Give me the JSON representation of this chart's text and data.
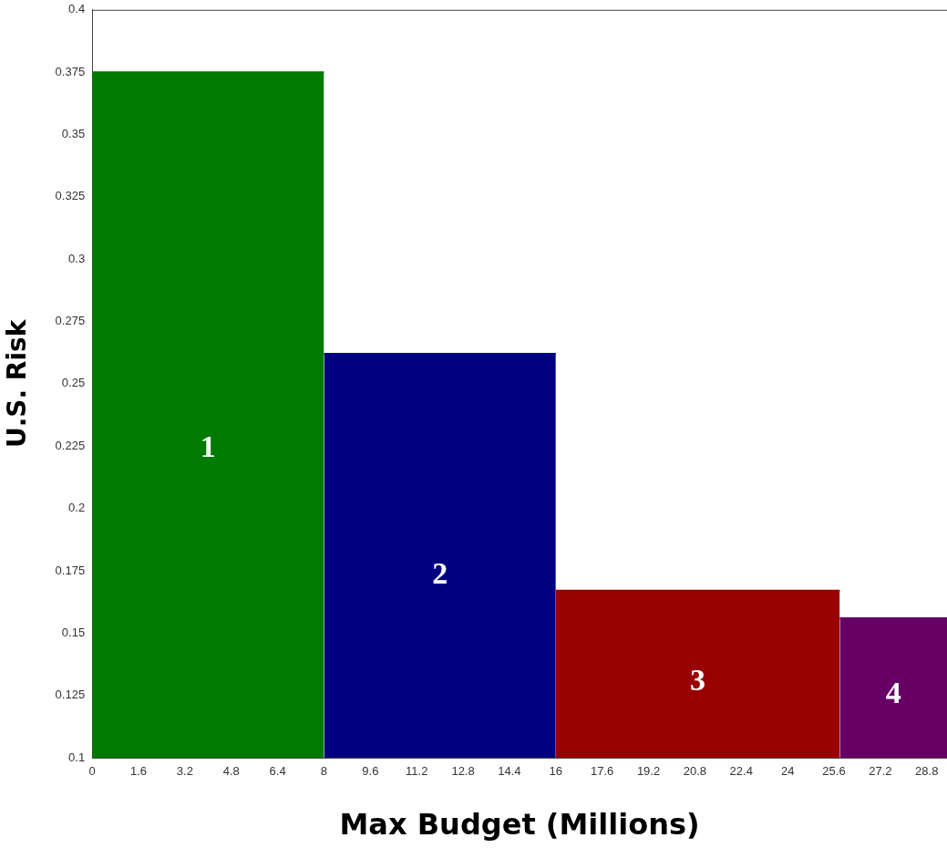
{
  "chart_data": {
    "type": "area",
    "xlabel": "Max Budget (Millions)",
    "ylabel": "U.S. Risk",
    "series": [
      {
        "color": "#007a00",
        "x": [
          0,
          8
        ],
        "values": [
          0.375,
          0.375
        ]
      },
      {
        "color": "#000080",
        "x": [
          8,
          16
        ],
        "values": [
          0.262,
          0.262
        ]
      },
      {
        "color": "#990000",
        "x": [
          16,
          25.8
        ],
        "values": [
          0.167,
          0.167
        ]
      },
      {
        "color": "#660066",
        "x": [
          25.8,
          29.5
        ],
        "values": [
          0.156,
          0.156
        ]
      }
    ],
    "xlim": [
      0,
      29.5
    ],
    "xticks": [
      0,
      1.6,
      3.2,
      4.8,
      6.4,
      8,
      9.6,
      11.2,
      12.8,
      14.4,
      16,
      17.6,
      19.2,
      20.8,
      22.4,
      24,
      25.6,
      27.2,
      28.8
    ],
    "ylim": [
      0.1,
      0.4
    ],
    "yticks": [
      0.1,
      0.125,
      0.15,
      0.175,
      0.2,
      0.225,
      0.25,
      0.275,
      0.3,
      0.325,
      0.35,
      0.375,
      0.4
    ],
    "grid": false,
    "legend": false,
    "annotations": [
      "1",
      "2",
      "3",
      "4"
    ]
  }
}
